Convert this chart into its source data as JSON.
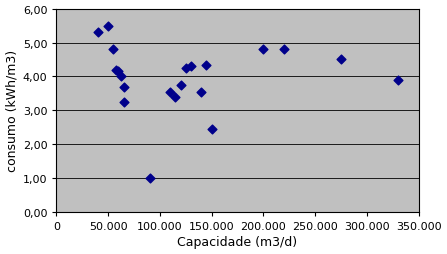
{
  "points": [
    [
      40000,
      5.3
    ],
    [
      50000,
      5.5
    ],
    [
      55000,
      4.8
    ],
    [
      58000,
      4.2
    ],
    [
      60000,
      4.15
    ],
    [
      62000,
      4.0
    ],
    [
      65000,
      3.7
    ],
    [
      65000,
      3.25
    ],
    [
      90000,
      1.0
    ],
    [
      110000,
      3.55
    ],
    [
      115000,
      3.4
    ],
    [
      120000,
      3.75
    ],
    [
      125000,
      4.25
    ],
    [
      130000,
      4.3
    ],
    [
      140000,
      3.55
    ],
    [
      145000,
      4.35
    ],
    [
      150000,
      2.45
    ],
    [
      200000,
      4.8
    ],
    [
      220000,
      4.8
    ],
    [
      275000,
      4.5
    ],
    [
      330000,
      3.9
    ]
  ],
  "marker_color": "#00008B",
  "marker_size": 20,
  "plot_bg_color": "#C0C0C0",
  "fig_bg_color": "#FFFFFF",
  "xlabel": "Capacidade (m3/d)",
  "ylabel": "consumo (kWh/m3)",
  "xlim": [
    0,
    350000
  ],
  "ylim": [
    0.0,
    6.0
  ],
  "xticks": [
    0,
    50000,
    100000,
    150000,
    200000,
    250000,
    300000,
    350000
  ],
  "yticks": [
    0.0,
    1.0,
    2.0,
    3.0,
    4.0,
    5.0,
    6.0
  ],
  "grid_color": "#000000",
  "axis_label_fontsize": 9,
  "tick_fontsize": 8
}
